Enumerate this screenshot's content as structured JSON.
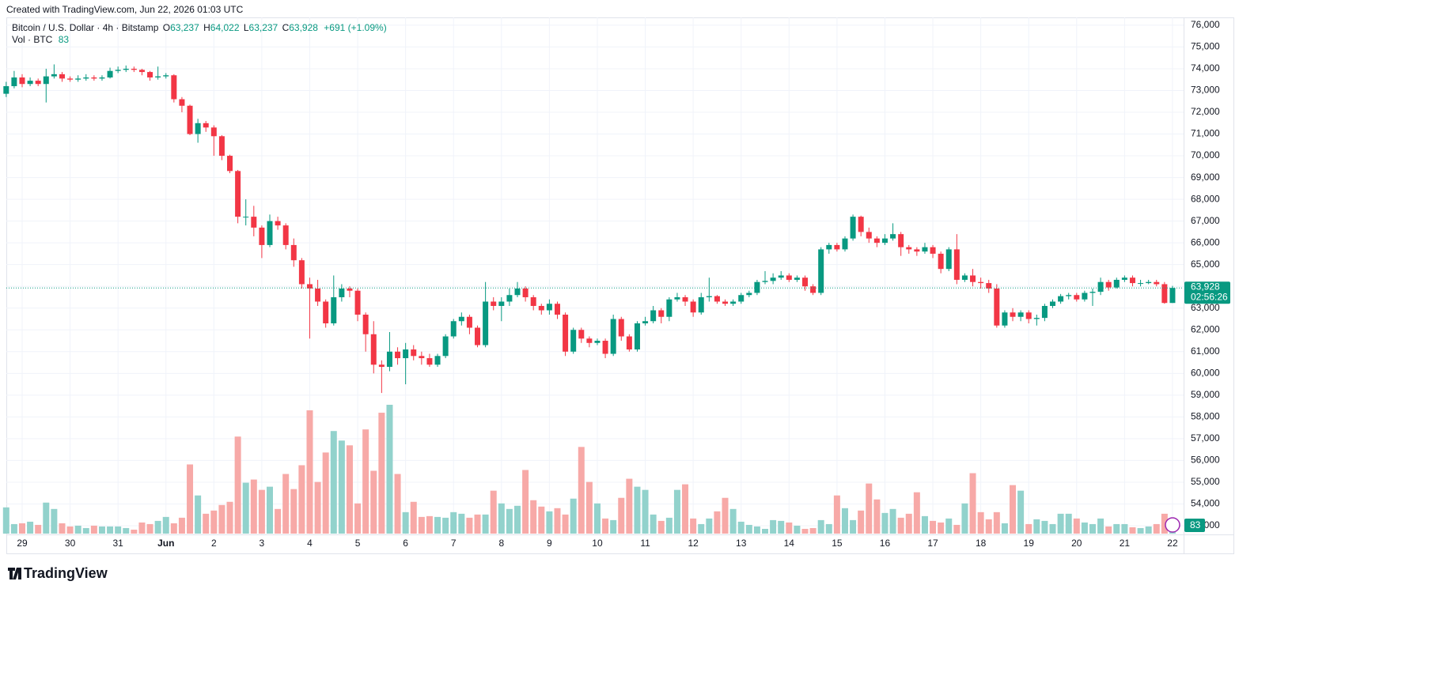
{
  "header": {
    "credit": "Created with TradingView.com, Jun 22, 2026 01:03 UTC"
  },
  "legend": {
    "symbol": "Bitcoin / U.S. Dollar · 4h · Bitstamp",
    "o_label": "O",
    "o": "63,237",
    "h_label": "H",
    "h": "64,022",
    "l_label": "L",
    "l": "63,237",
    "c_label": "C",
    "c": "63,928",
    "change": "+691 (+1.09%)",
    "vol_label": "Vol · BTC",
    "vol": "83"
  },
  "footer": {
    "logo": "TradingView"
  },
  "chart_data": {
    "type": "candlestick",
    "up_color": "#089981",
    "down_color": "#f23645",
    "volume_up_color": "#92d2cc",
    "volume_down_color": "#f7a9a7",
    "grid": true,
    "ylim": [
      52600,
      76360
    ],
    "yticks": [
      {
        "value": 53000,
        "label": "53,000"
      },
      {
        "value": 54000,
        "label": "54,000"
      },
      {
        "value": 55000,
        "label": "55,000"
      },
      {
        "value": 56000,
        "label": "56,000"
      },
      {
        "value": 57000,
        "label": "57,000"
      },
      {
        "value": 58000,
        "label": "58,000"
      },
      {
        "value": 59000,
        "label": "59,000"
      },
      {
        "value": 60000,
        "label": "60,000"
      },
      {
        "value": 61000,
        "label": "61,000"
      },
      {
        "value": 62000,
        "label": "62,000"
      },
      {
        "value": 63000,
        "label": "63,000"
      },
      {
        "value": 64000,
        "label": "64,000"
      },
      {
        "value": 65000,
        "label": "65,000"
      },
      {
        "value": 66000,
        "label": "66,000"
      },
      {
        "value": 67000,
        "label": "67,000"
      },
      {
        "value": 68000,
        "label": "68,000"
      },
      {
        "value": 69000,
        "label": "69,000"
      },
      {
        "value": 70000,
        "label": "70,000"
      },
      {
        "value": 71000,
        "label": "71,000"
      },
      {
        "value": 72000,
        "label": "72,000"
      },
      {
        "value": 73000,
        "label": "73,000"
      },
      {
        "value": 74000,
        "label": "74,000"
      },
      {
        "value": 75000,
        "label": "75,000"
      },
      {
        "value": 76000,
        "label": "76,000"
      }
    ],
    "last_price": {
      "value": 63928,
      "label": "63,928"
    },
    "countdown": "02:56:26",
    "last_volume_label": "83",
    "categories": [
      null,
      null,
      "29",
      null,
      null,
      null,
      null,
      null,
      "30",
      null,
      null,
      null,
      null,
      null,
      "31",
      null,
      null,
      null,
      null,
      null,
      "Jun",
      null,
      null,
      null,
      null,
      null,
      "2",
      null,
      null,
      null,
      null,
      null,
      "3",
      null,
      null,
      null,
      null,
      null,
      "4",
      null,
      null,
      null,
      null,
      null,
      "5",
      null,
      null,
      null,
      null,
      null,
      "6",
      null,
      null,
      null,
      null,
      null,
      "7",
      null,
      null,
      null,
      null,
      null,
      "8",
      null,
      null,
      null,
      null,
      null,
      "9",
      null,
      null,
      null,
      null,
      null,
      "10",
      null,
      null,
      null,
      null,
      null,
      "11",
      null,
      null,
      null,
      null,
      null,
      "12",
      null,
      null,
      null,
      null,
      null,
      "13",
      null,
      null,
      null,
      null,
      null,
      "14",
      null,
      null,
      null,
      null,
      null,
      "15",
      null,
      null,
      null,
      null,
      null,
      "16",
      null,
      null,
      null,
      null,
      null,
      "17",
      null,
      null,
      null,
      null,
      null,
      "18",
      null,
      null,
      null,
      null,
      null,
      "19",
      null,
      null,
      null,
      null,
      null,
      "20",
      null,
      null,
      null,
      null,
      null,
      "21",
      null,
      null,
      null,
      null,
      null,
      "22"
    ],
    "open": [
      72850,
      73200,
      73600,
      73300,
      73450,
      73300,
      73650,
      73750,
      73550,
      73500,
      73550,
      73600,
      73550,
      73600,
      73900,
      73950,
      74000,
      73950,
      73850,
      73600,
      73650,
      73700,
      72600,
      72300,
      71000,
      71500,
      71300,
      70900,
      70000,
      69300,
      67200,
      67200,
      66700,
      65900,
      67000,
      66800,
      65900,
      65200,
      64100,
      63900,
      63300,
      62300,
      63500,
      63900,
      63800,
      62700,
      61800,
      60400,
      60300,
      61000,
      60700,
      61100,
      60800,
      60700,
      60400,
      60800,
      61700,
      62400,
      62600,
      62100,
      61300,
      63300,
      63100,
      63300,
      63600,
      63900,
      63500,
      63100,
      62900,
      63200,
      62700,
      61000,
      62000,
      61600,
      61400,
      61500,
      60900,
      62500,
      61700,
      61100,
      62300,
      62400,
      62900,
      62600,
      63400,
      63500,
      63300,
      62800,
      63500,
      63550,
      63300,
      63200,
      63300,
      63600,
      63700,
      64200,
      64250,
      64400,
      64500,
      64300,
      64400,
      64000,
      63700,
      65700,
      65900,
      65700,
      66200,
      67200,
      66500,
      66200,
      66000,
      66200,
      66400,
      65800,
      65700,
      65600,
      65800,
      65500,
      64800,
      65700,
      64300,
      64500,
      64200,
      64150,
      63900,
      62200,
      62800,
      62600,
      62800,
      62500,
      62550,
      63100,
      63300,
      63550,
      63600,
      63400,
      63700,
      63750,
      64200,
      63950,
      64300,
      64400,
      64150,
      64150,
      64200,
      64100,
      63237
    ],
    "high": [
      73400,
      73900,
      73750,
      73600,
      73550,
      74000,
      74200,
      73850,
      73650,
      73700,
      73750,
      73700,
      73700,
      74050,
      74100,
      74150,
      74100,
      74000,
      73900,
      74100,
      73800,
      73750,
      72700,
      72350,
      71700,
      71600,
      71400,
      70950,
      70050,
      69350,
      68000,
      67700,
      66800,
      67300,
      67200,
      66900,
      66200,
      65300,
      64400,
      64300,
      63400,
      64500,
      64100,
      64000,
      63900,
      62800,
      62400,
      60600,
      61900,
      61200,
      61400,
      61300,
      61000,
      60900,
      60900,
      61800,
      62500,
      62800,
      62700,
      62200,
      64200,
      63500,
      63500,
      63900,
      64200,
      64000,
      63600,
      63200,
      63400,
      63300,
      62800,
      62100,
      62100,
      61700,
      61600,
      61600,
      62700,
      62600,
      61800,
      62400,
      62600,
      63100,
      63000,
      63500,
      63700,
      63600,
      63400,
      63700,
      64400,
      63600,
      63400,
      63400,
      63700,
      63800,
      64300,
      64700,
      64600,
      64700,
      64600,
      64500,
      64500,
      64100,
      65800,
      66000,
      66000,
      66300,
      67300,
      67250,
      66700,
      66300,
      66400,
      66900,
      66500,
      65900,
      65800,
      66000,
      65900,
      65600,
      65800,
      66400,
      64600,
      64800,
      64400,
      64300,
      64100,
      62900,
      63000,
      62900,
      62900,
      62700,
      63200,
      63400,
      63650,
      63700,
      63700,
      63800,
      63900,
      64400,
      64300,
      64400,
      64500,
      64500,
      64300,
      64300,
      64300,
      64200,
      64022
    ],
    "low": [
      72700,
      73100,
      73150,
      73200,
      73200,
      72450,
      73550,
      73400,
      73400,
      73400,
      73450,
      73450,
      73450,
      73550,
      73800,
      73850,
      73850,
      73700,
      73450,
      73500,
      73550,
      72450,
      72000,
      70950,
      70600,
      71100,
      70000,
      69800,
      69200,
      66900,
      66800,
      66300,
      65300,
      65800,
      66600,
      65700,
      64900,
      63900,
      61600,
      63100,
      62100,
      62200,
      63300,
      63500,
      62400,
      61000,
      60000,
      59100,
      60100,
      60400,
      59500,
      60600,
      60400,
      60300,
      60300,
      60700,
      61600,
      62200,
      61800,
      61200,
      61200,
      62900,
      62400,
      63100,
      63500,
      63300,
      62900,
      62700,
      62700,
      62500,
      60800,
      60900,
      61400,
      61200,
      61300,
      60700,
      60800,
      61500,
      61000,
      61000,
      62200,
      62300,
      62300,
      62400,
      63300,
      63100,
      62600,
      62700,
      63300,
      63200,
      63100,
      63100,
      63200,
      63500,
      63600,
      64100,
      64100,
      64300,
      64200,
      64200,
      63800,
      63600,
      63600,
      65500,
      65600,
      65600,
      66100,
      66300,
      66000,
      65800,
      65900,
      66100,
      65400,
      65500,
      65400,
      65500,
      65300,
      64600,
      64700,
      64100,
      64200,
      64000,
      63900,
      63700,
      62100,
      62100,
      62400,
      62400,
      62300,
      62200,
      62400,
      63000,
      63200,
      63400,
      63300,
      63300,
      63100,
      63600,
      63800,
      63900,
      64200,
      64000,
      64000,
      64100,
      64000,
      63200,
      63237
    ],
    "close": [
      73200,
      73600,
      73300,
      73450,
      73300,
      73650,
      73750,
      73550,
      73500,
      73550,
      73600,
      73550,
      73600,
      73900,
      73950,
      74000,
      73950,
      73850,
      73600,
      73650,
      73700,
      72600,
      72300,
      71000,
      71500,
      71300,
      70900,
      70000,
      69300,
      67200,
      67200,
      66700,
      65900,
      67000,
      66800,
      65900,
      65200,
      64100,
      63900,
      63300,
      62300,
      63500,
      63900,
      63800,
      62700,
      61800,
      60400,
      60300,
      61000,
      60700,
      61100,
      60800,
      60700,
      60400,
      60800,
      61700,
      62400,
      62600,
      62100,
      61300,
      63300,
      63100,
      63300,
      63600,
      63900,
      63500,
      63100,
      62900,
      63200,
      62700,
      61000,
      62000,
      61600,
      61400,
      61500,
      60900,
      62500,
      61700,
      61100,
      62300,
      62400,
      62900,
      62600,
      63400,
      63500,
      63300,
      62800,
      63500,
      63550,
      63300,
      63200,
      63300,
      63600,
      63700,
      64200,
      64250,
      64400,
      64500,
      64300,
      64400,
      64000,
      63700,
      65700,
      65900,
      65700,
      66200,
      67200,
      66500,
      66200,
      66000,
      66200,
      66400,
      65800,
      65700,
      65600,
      65800,
      65500,
      64800,
      65700,
      64300,
      64500,
      64200,
      64150,
      63900,
      62200,
      62800,
      62600,
      62800,
      62500,
      62550,
      63100,
      63300,
      63550,
      63600,
      63400,
      63700,
      63750,
      64200,
      63950,
      64300,
      64400,
      64150,
      64150,
      64200,
      64100,
      63237,
      63928
    ],
    "volume": [
      264,
      96,
      104,
      120,
      88,
      312,
      248,
      104,
      72,
      80,
      56,
      80,
      72,
      72,
      72,
      56,
      40,
      112,
      96,
      128,
      168,
      104,
      160,
      696,
      384,
      200,
      232,
      288,
      320,
      976,
      512,
      544,
      440,
      472,
      248,
      600,
      448,
      688,
      1240,
      520,
      816,
      1032,
      936,
      888,
      304,
      1048,
      632,
      1216,
      1296,
      600,
      216,
      320,
      168,
      176,
      168,
      160,
      216,
      200,
      160,
      192,
      192,
      432,
      304,
      248,
      280,
      640,
      336,
      272,
      224,
      256,
      192,
      352,
      872,
      520,
      304,
      152,
      136,
      360,
      552,
      472,
      440,
      192,
      128,
      160,
      440,
      496,
      152,
      96,
      152,
      224,
      360,
      248,
      120,
      88,
      72,
      48,
      136,
      128,
      112,
      80,
      48,
      56,
      136,
      96,
      384,
      256,
      136,
      232,
      504,
      344,
      208,
      248,
      160,
      200,
      416,
      176,
      128,
      112,
      152,
      88,
      304,
      608,
      216,
      144,
      216,
      104,
      488,
      432,
      96,
      144,
      128,
      96,
      200,
      200,
      152,
      112,
      96,
      152,
      72,
      96,
      96,
      64,
      56,
      72,
      96,
      200,
      83
    ]
  }
}
